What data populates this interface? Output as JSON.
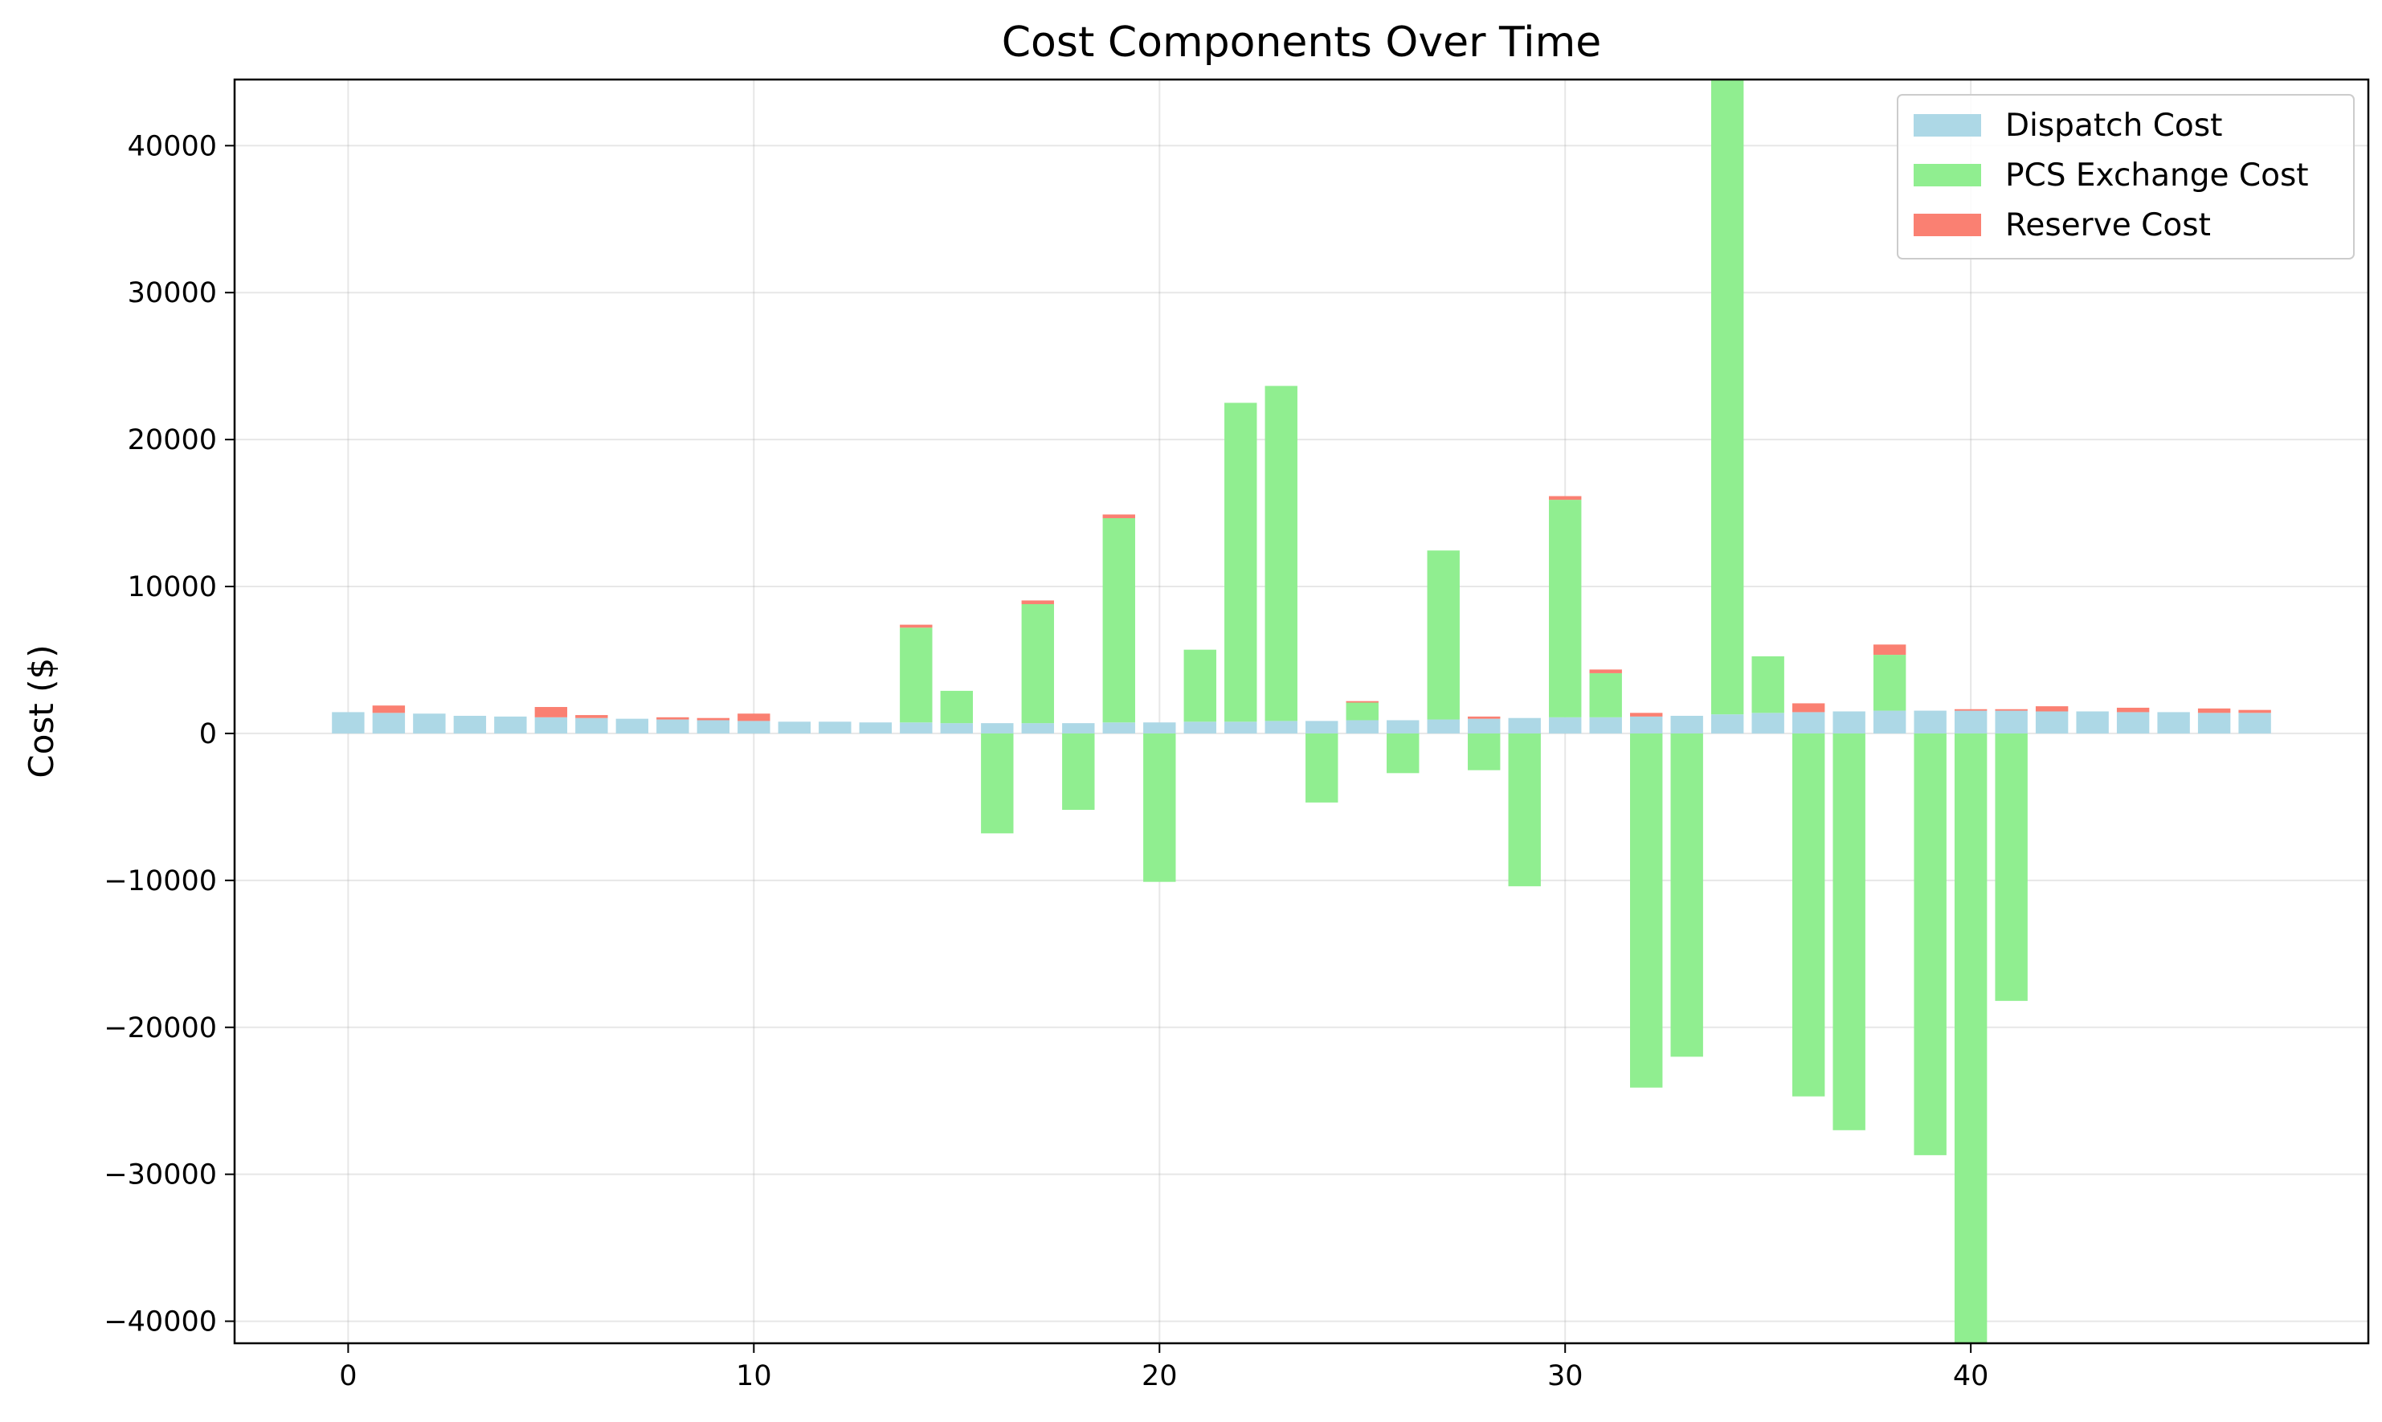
{
  "chart_data": {
    "type": "bar",
    "stacked": true,
    "title": "Cost Components Over Time",
    "xlabel": "",
    "ylabel": "Cost ($)",
    "xlim": [
      -2.8,
      49.8
    ],
    "ylim": [
      -41500,
      44500
    ],
    "xticks": [
      0,
      10,
      20,
      30,
      40
    ],
    "yticks": [
      -40000,
      -30000,
      -20000,
      -10000,
      0,
      10000,
      20000,
      30000,
      40000
    ],
    "ytick_labels": [
      "−40000",
      "−30000",
      "−20000",
      "−10000",
      "0",
      "10000",
      "20000",
      "30000",
      "40000"
    ],
    "grid": true,
    "legend_position": "top-right",
    "x": [
      0,
      1,
      2,
      3,
      4,
      5,
      6,
      7,
      8,
      9,
      10,
      11,
      12,
      13,
      14,
      15,
      16,
      17,
      18,
      19,
      20,
      21,
      22,
      23,
      24,
      25,
      26,
      27,
      28,
      29,
      30,
      31,
      32,
      33,
      34,
      35,
      36,
      37,
      38,
      39,
      40,
      41,
      42,
      43,
      44,
      45,
      46,
      47
    ],
    "series": [
      {
        "name": "Dispatch Cost",
        "color": "#add8e6",
        "values": [
          1450,
          1400,
          1350,
          1200,
          1150,
          1100,
          1050,
          1000,
          950,
          900,
          850,
          800,
          800,
          750,
          750,
          700,
          700,
          700,
          700,
          750,
          750,
          800,
          800,
          850,
          850,
          900,
          900,
          950,
          1000,
          1050,
          1100,
          1100,
          1150,
          1200,
          1300,
          1400,
          1450,
          1500,
          1550,
          1550,
          1550,
          1550,
          1500,
          1500,
          1450,
          1450,
          1400,
          1400
        ]
      },
      {
        "name": "PCS Exchange Cost",
        "color": "#90ee90",
        "values": [
          0,
          0,
          0,
          0,
          0,
          0,
          0,
          0,
          0,
          0,
          0,
          0,
          0,
          0,
          6450,
          2200,
          -6800,
          8100,
          -5200,
          13900,
          -10100,
          4900,
          21700,
          22800,
          -4700,
          1200,
          -2700,
          11500,
          -2500,
          -10400,
          14800,
          3000,
          -24100,
          -22000,
          43200,
          3850,
          -24700,
          -27000,
          3800,
          -28700,
          -43000,
          -18200,
          0,
          0,
          0,
          0,
          0,
          0
        ]
      },
      {
        "name": "Reserve Cost",
        "color": "#fa8072",
        "values": [
          0,
          500,
          0,
          0,
          0,
          700,
          200,
          0,
          150,
          150,
          500,
          0,
          0,
          0,
          200,
          0,
          0,
          250,
          0,
          250,
          0,
          0,
          0,
          0,
          0,
          100,
          0,
          0,
          150,
          0,
          250,
          250,
          250,
          0,
          0,
          0,
          600,
          0,
          700,
          0,
          100,
          100,
          350,
          0,
          300,
          0,
          300,
          200
        ]
      }
    ]
  }
}
